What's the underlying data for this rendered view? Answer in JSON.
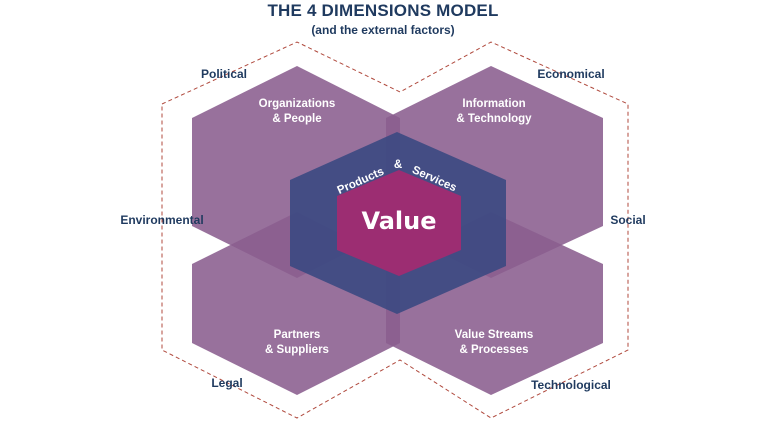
{
  "title": "THE 4 DIMENSIONS MODEL",
  "subtitle": "(and the external factors)",
  "external_factors": {
    "political": "Political",
    "economical": "Economical",
    "environmental": "Environmental",
    "social": "Social",
    "legal": "Legal",
    "technological": "Technological"
  },
  "dimensions": {
    "org_people": {
      "line1": "Organizations",
      "line2": "& People"
    },
    "info_tech": {
      "line1": "Information",
      "line2": "& Technology"
    },
    "partners": {
      "line1": "Partners",
      "line2": "& Suppliers"
    },
    "value_streams": {
      "line1": "Value Streams",
      "line2": "& Processes"
    }
  },
  "center": {
    "products": "Products",
    "amp": "&",
    "services": "Services",
    "value": "Value"
  },
  "colors": {
    "dimension_fill": "#8a5d8e",
    "products_fill": "#3d4a82",
    "value_fill": "#9c2d72",
    "title": "#1f3a5f",
    "dashed_border": "#b04a3e"
  }
}
